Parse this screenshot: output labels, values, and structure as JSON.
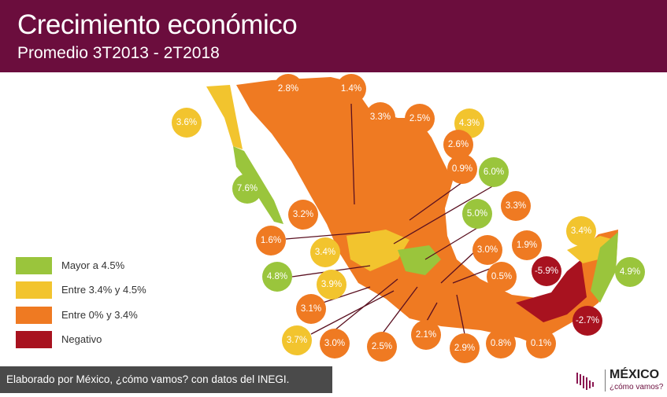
{
  "header": {
    "title": "Crecimiento económico",
    "subtitle": "Promedio 3T2013 - 2T2018"
  },
  "colors": {
    "header": "#6b0d3d",
    "Mayor a 4.5%": "#9ac53c",
    "Entre 3.4% y 4.5%": "#f2c42e",
    "Entre 0% y 3.4%": "#ef7a22",
    "Negativo": "#a8121f"
  },
  "legend": [
    {
      "label": "Mayor a 4.5%",
      "color": "#9ac53c"
    },
    {
      "label": "Entre 3.4% y 4.5%",
      "color": "#f2c42e"
    },
    {
      "label": "Entre 0% y 3.4%",
      "color": "#ef7a22"
    },
    {
      "label": "Negativo",
      "color": "#a8121f"
    }
  ],
  "values": [
    {
      "value": "2.8%",
      "category": 2
    },
    {
      "value": "1.4%",
      "category": 2
    },
    {
      "value": "3.6%",
      "category": 1
    },
    {
      "value": "3.3%",
      "category": 2
    },
    {
      "value": "2.5%",
      "category": 2
    },
    {
      "value": "4.3%",
      "category": 1
    },
    {
      "value": "2.6%",
      "category": 2
    },
    {
      "value": "7.6%",
      "category": 0
    },
    {
      "value": "0.9%",
      "category": 2
    },
    {
      "value": "6.0%",
      "category": 0
    },
    {
      "value": "3.2%",
      "category": 2
    },
    {
      "value": "3.3%",
      "category": 2
    },
    {
      "value": "5.0%",
      "category": 0
    },
    {
      "value": "1.6%",
      "category": 2
    },
    {
      "value": "3.4%",
      "category": 1
    },
    {
      "value": "1.9%",
      "category": 2
    },
    {
      "value": "3.0%",
      "category": 2
    },
    {
      "value": "3.4%",
      "category": 1
    },
    {
      "value": "-5.9%",
      "category": 3
    },
    {
      "value": "4.9%",
      "category": 0
    },
    {
      "value": "4.8%",
      "category": 0
    },
    {
      "value": "0.5%",
      "category": 2
    },
    {
      "value": "3.9%",
      "category": 1
    },
    {
      "value": "3.1%",
      "category": 2
    },
    {
      "value": "-2.7%",
      "category": 3
    },
    {
      "value": "3.7%",
      "category": 1
    },
    {
      "value": "3.0%",
      "category": 2
    },
    {
      "value": "2.5%",
      "category": 2
    },
    {
      "value": "2.1%",
      "category": 2
    },
    {
      "value": "2.9%",
      "category": 2
    },
    {
      "value": "0.8%",
      "category": 2
    },
    {
      "value": "0.1%",
      "category": 2
    }
  ],
  "footer": {
    "text": "Elaborado por México, ¿cómo vamos? con datos del INEGI."
  },
  "logo": {
    "name": "MÉXICO",
    "tagline": "¿cómo vamos?"
  }
}
